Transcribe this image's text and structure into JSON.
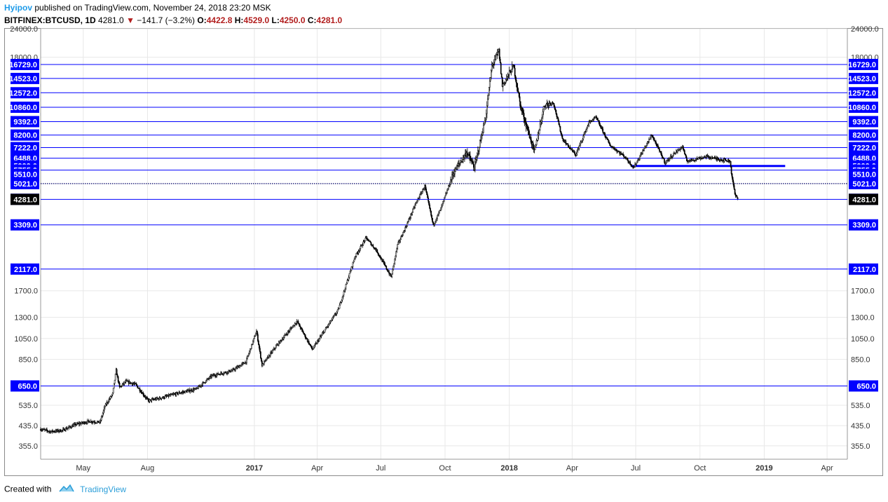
{
  "header": {
    "author": "Hyipov",
    "published_text": "published on TradingView.com, November 24, 2018 23:20 MSK",
    "symbol": "BITFINEX:BTCUSD, 1D",
    "last": "4281.0",
    "change": "−141.7 (−3.2%)",
    "o_label": "O:",
    "o_value": "4422.8",
    "h_label": "H:",
    "h_value": "4529.0",
    "l_label": "L:",
    "l_value": "4250.0",
    "c_label": "C:",
    "c_value": "4281.0"
  },
  "footer": {
    "created_text": "Created with",
    "brand": "TradingView"
  },
  "colors": {
    "level_line": "#0000ff",
    "level_label_bg": "#0000ff",
    "current_price_bg": "#000000",
    "down": "#b21e1e",
    "candle": "#000000",
    "grid": "#e8e8e8"
  },
  "chart_data": {
    "type": "candlestick",
    "y_scale": "log",
    "ylim": [
      310,
      24000
    ],
    "x_range": [
      "2016-03-01",
      "2019-04-30"
    ],
    "x_ticks": [
      {
        "date": "2016-05-01",
        "label": "May"
      },
      {
        "date": "2016-08-01",
        "label": "Aug"
      },
      {
        "date": "2017-01-01",
        "label": "2017"
      },
      {
        "date": "2017-04-01",
        "label": "Apr"
      },
      {
        "date": "2017-07-01",
        "label": "Jul"
      },
      {
        "date": "2017-10-01",
        "label": "Oct"
      },
      {
        "date": "2018-01-01",
        "label": "2018"
      },
      {
        "date": "2018-04-01",
        "label": "Apr"
      },
      {
        "date": "2018-07-01",
        "label": "Jul"
      },
      {
        "date": "2018-10-01",
        "label": "Oct"
      },
      {
        "date": "2019-01-01",
        "label": "2019"
      },
      {
        "date": "2019-04-01",
        "label": "Apr"
      }
    ],
    "y_ticks": [
      355,
      435,
      535,
      850,
      1050,
      1300,
      1700,
      18000,
      24000
    ],
    "y_tick_labels": [
      "355.0",
      "435.0",
      "535.0",
      "850.0",
      "1050.0",
      "1300.0",
      "1700.0",
      "18000.0",
      "24000.0"
    ],
    "levels": [
      16729,
      14523,
      12572,
      10860,
      9392,
      8200,
      7222,
      6488,
      5999,
      5755,
      5510,
      5021,
      4287,
      3309,
      2117,
      650
    ],
    "level_labels": [
      "16729.0",
      "14523.0",
      "12572.0",
      "10860.0",
      "9392.0",
      "8200.0",
      "7222.0",
      "6488.0",
      "5999.0",
      "5755.0",
      "5510.0",
      "5021.0",
      "4287.0",
      "3309.0",
      "2117.0",
      "650.0"
    ],
    "drawn_lines": [
      16729,
      14523,
      12572,
      10860,
      9392,
      8200,
      7222,
      6488,
      5755,
      3309,
      2117,
      650
    ],
    "current_price": 4281,
    "current_price_label": "4281.0",
    "dotted_line": 5021,
    "thick_segment": {
      "value": 6000,
      "from": "2018-06-24",
      "to": "2019-01-31"
    },
    "anchors": [
      [
        "2016-03-01",
        420
      ],
      [
        "2016-03-15",
        410
      ],
      [
        "2016-04-01",
        415
      ],
      [
        "2016-04-20",
        440
      ],
      [
        "2016-05-10",
        455
      ],
      [
        "2016-05-25",
        450
      ],
      [
        "2016-06-01",
        530
      ],
      [
        "2016-06-12",
        600
      ],
      [
        "2016-06-17",
        760
      ],
      [
        "2016-06-22",
        640
      ],
      [
        "2016-07-01",
        680
      ],
      [
        "2016-07-15",
        660
      ],
      [
        "2016-08-02",
        560
      ],
      [
        "2016-08-20",
        575
      ],
      [
        "2016-09-15",
        605
      ],
      [
        "2016-10-10",
        630
      ],
      [
        "2016-11-01",
        720
      ],
      [
        "2016-12-01",
        760
      ],
      [
        "2016-12-20",
        830
      ],
      [
        "2017-01-04",
        1130
      ],
      [
        "2017-01-12",
        800
      ],
      [
        "2017-02-01",
        970
      ],
      [
        "2017-03-03",
        1250
      ],
      [
        "2017-03-10",
        1140
      ],
      [
        "2017-03-25",
        940
      ],
      [
        "2017-04-15",
        1180
      ],
      [
        "2017-05-01",
        1400
      ],
      [
        "2017-05-25",
        2400
      ],
      [
        "2017-06-10",
        2900
      ],
      [
        "2017-06-25",
        2550
      ],
      [
        "2017-07-16",
        1950
      ],
      [
        "2017-07-25",
        2700
      ],
      [
        "2017-08-05",
        3200
      ],
      [
        "2017-08-20",
        4100
      ],
      [
        "2017-09-02",
        4900
      ],
      [
        "2017-09-14",
        3300
      ],
      [
        "2017-09-25",
        3900
      ],
      [
        "2017-10-13",
        5600
      ],
      [
        "2017-11-01",
        6900
      ],
      [
        "2017-11-12",
        5900
      ],
      [
        "2017-11-28",
        9800
      ],
      [
        "2017-12-07",
        16500
      ],
      [
        "2017-12-17",
        19200
      ],
      [
        "2017-12-22",
        13500
      ],
      [
        "2018-01-07",
        16500
      ],
      [
        "2018-01-17",
        11000
      ],
      [
        "2018-02-06",
        6900
      ],
      [
        "2018-02-20",
        11100
      ],
      [
        "2018-03-05",
        11400
      ],
      [
        "2018-03-18",
        7900
      ],
      [
        "2018-04-06",
        6700
      ],
      [
        "2018-04-25",
        9300
      ],
      [
        "2018-05-05",
        9800
      ],
      [
        "2018-05-25",
        7400
      ],
      [
        "2018-06-15",
        6600
      ],
      [
        "2018-06-28",
        5900
      ],
      [
        "2018-07-24",
        8200
      ],
      [
        "2018-08-12",
        6200
      ],
      [
        "2018-08-25",
        6800
      ],
      [
        "2018-09-06",
        7300
      ],
      [
        "2018-09-12",
        6300
      ],
      [
        "2018-10-10",
        6600
      ],
      [
        "2018-10-25",
        6450
      ],
      [
        "2018-11-13",
        6300
      ],
      [
        "2018-11-15",
        5600
      ],
      [
        "2018-11-20",
        4500
      ],
      [
        "2018-11-24",
        4281
      ]
    ]
  }
}
